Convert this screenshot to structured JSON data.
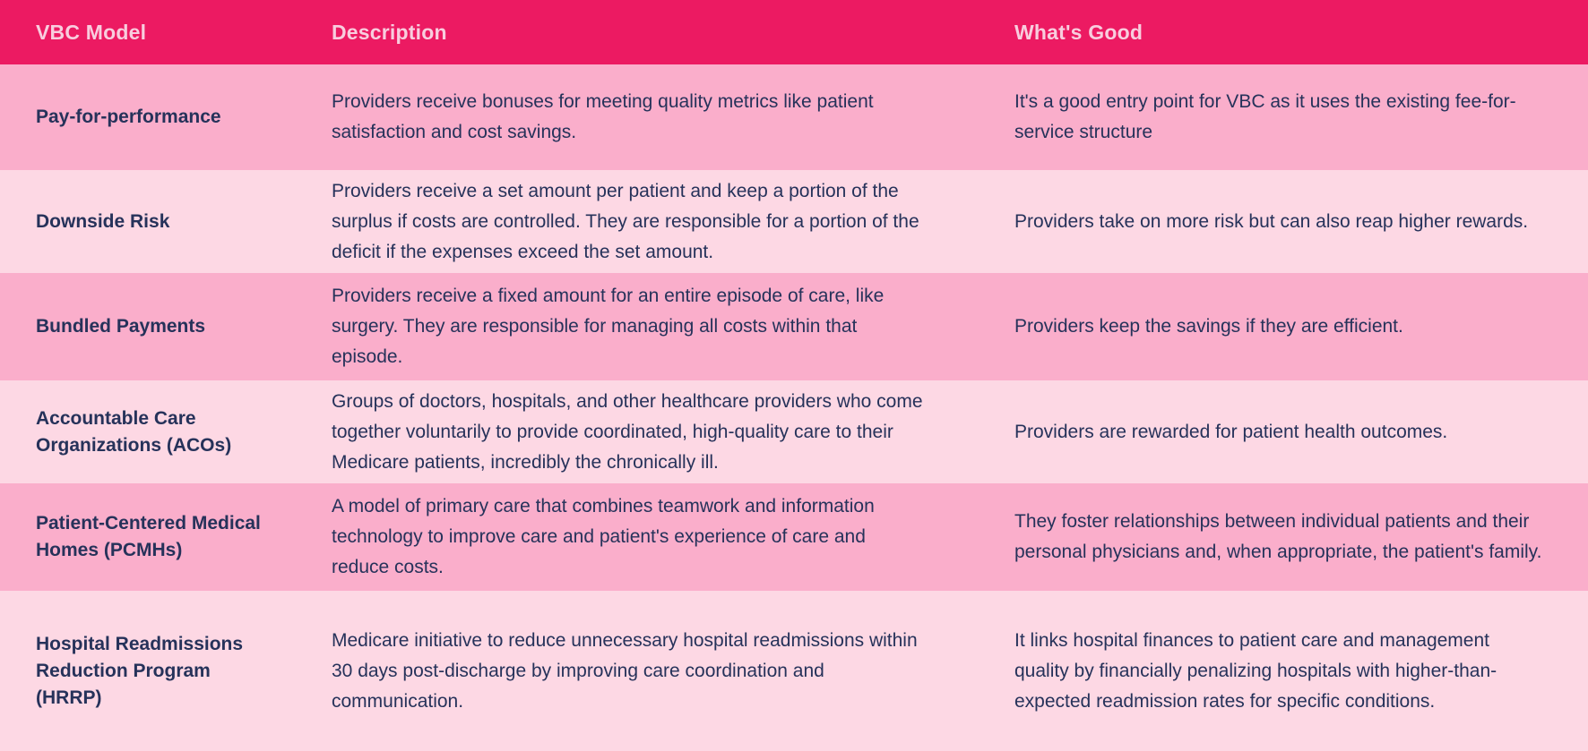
{
  "colors": {
    "header_bg": "#EC1A62",
    "header_text": "#F8CDDE",
    "row_dark": "#FAAECB",
    "row_light": "#FDD8E4",
    "body_text": "#26325A"
  },
  "table": {
    "columns": [
      {
        "key": "model",
        "label": "VBC Model"
      },
      {
        "key": "description",
        "label": "Description"
      },
      {
        "key": "whats_good",
        "label": "What's Good"
      }
    ],
    "rows": [
      {
        "model": "Pay-for-performance",
        "description": "Providers receive bonuses for meeting quality metrics like patient satisfaction and cost savings.",
        "whats_good": "It's a good entry point for VBC as it uses the existing fee-for-service structure"
      },
      {
        "model": "Downside Risk",
        "description": "Providers receive a set amount per patient and keep a portion of the surplus if costs are controlled. They are responsible for a portion of the deficit if the expenses exceed the set amount.",
        "whats_good": "Providers take on more risk but can also reap higher rewards."
      },
      {
        "model": "Bundled Payments",
        "description": "Providers receive a fixed amount for an entire episode of care, like surgery. They are responsible for managing all costs within that episode.",
        "whats_good": "Providers keep the savings if they are efficient."
      },
      {
        "model": "Accountable Care Organizations (ACOs)",
        "description": "Groups of doctors, hospitals, and other healthcare providers who come together voluntarily to provide coordinated, high-quality care to their Medicare patients, incredibly the chronically ill.",
        "whats_good": "Providers are rewarded for patient health outcomes."
      },
      {
        "model": "Patient-Centered Medical Homes (PCMHs)",
        "description": "A model of primary care that combines teamwork and information technology to improve care and patient's experience of care and reduce costs.",
        "whats_good": "They foster relationships between individual patients and their personal physicians and, when appropriate, the patient's family."
      },
      {
        "model": "Hospital Readmissions Reduction Program (HRRP)",
        "description": "Medicare initiative to reduce unnecessary hospital readmissions within 30 days post-discharge by improving care coordination and communication.",
        "whats_good": "It links hospital finances to patient care and management quality by financially penalizing hospitals with higher-than-expected readmission rates for specific conditions."
      }
    ]
  }
}
